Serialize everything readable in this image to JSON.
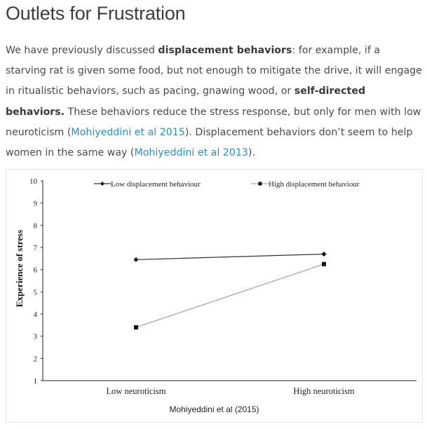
{
  "heading": "Outlets for Frustration",
  "paragraph": {
    "t1": "We have previously discussed ",
    "b1": "displacement behaviors",
    "t2": ": for example, if a starving rat is given some food, but not enough to mitigate the drive, it will engage in ritualistic behaviors, such as pacing, gnawing wood, or ",
    "b2": "self-directed behaviors.",
    "t3": " These behaviors reduce the stress response, but only for men with low neuroticism (",
    "link1": "Mohiyeddini et al 2015",
    "t4": "). Displacement behaviors don’t seem to help women in the same way (",
    "link2": "Mohiyeddini et al 2013",
    "t5": ")."
  },
  "colors": {
    "link": "#2a8fc6",
    "text": "#4a4a4a",
    "heading": "#3d3d3d"
  },
  "chart_data": {
    "type": "line",
    "ylabel": "Experience of stress",
    "categories": [
      "Low neuroticism",
      "High neuroticism"
    ],
    "yticks": [
      "1",
      "2",
      "3",
      "4",
      "5",
      "6",
      "7",
      "8",
      "9",
      "10"
    ],
    "ylim": [
      1,
      10
    ],
    "legend_position": "top",
    "series": [
      {
        "name": "Low displacement behaviour",
        "values": [
          6.45,
          6.7
        ],
        "marker": "diamond",
        "line": "solid"
      },
      {
        "name": "High displacement behaviour",
        "values": [
          3.4,
          6.25
        ],
        "marker": "square",
        "line": "dotted"
      }
    ],
    "caption": "Mohiyeddini et al (2015)"
  }
}
